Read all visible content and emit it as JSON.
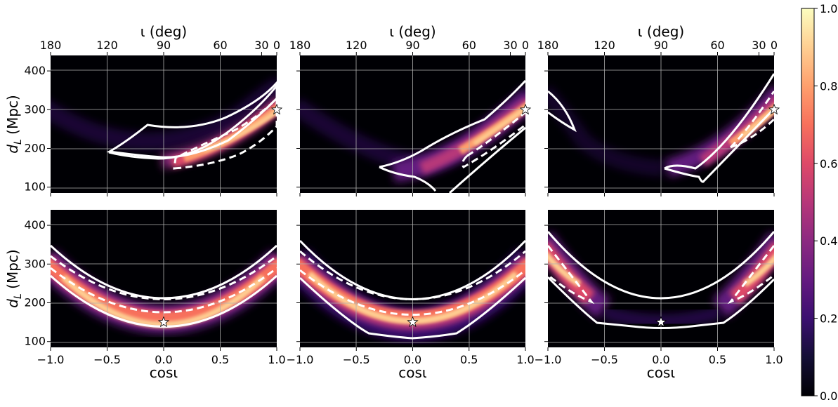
{
  "chart_data": {
    "type": "heatmap",
    "colormap": "magma",
    "panel_layout": "2 rows x 3 columns, shared axes",
    "x_axis": {
      "label": "cosι",
      "range": [
        -1.0,
        1.0
      ],
      "ticks": [
        -1.0,
        -0.5,
        0.0,
        0.5,
        1.0
      ],
      "tick_labels": [
        "−1.0",
        "−0.5",
        "0.0",
        "0.5",
        "1.0"
      ]
    },
    "top_axis": {
      "label": "ι (deg)",
      "ticks_deg": [
        180,
        120,
        90,
        60,
        30,
        0
      ],
      "tick_labels": [
        "180",
        "120",
        "90",
        "60",
        "30",
        "0"
      ]
    },
    "y_axis": {
      "label_main": "d",
      "label_sub": "L",
      "label_rest": " (Mpc)",
      "range": [
        85,
        440
      ],
      "ticks": [
        100,
        200,
        300,
        400
      ],
      "tick_labels": [
        "100",
        "200",
        "300",
        "400"
      ]
    },
    "colorbar": {
      "range": [
        0.0,
        1.0
      ],
      "ticks": [
        0.0,
        0.2,
        0.4,
        0.6,
        0.8,
        1.0
      ],
      "tick_labels": [
        "0.0",
        "0.2",
        "0.4",
        "0.6",
        "0.8",
        "1.0"
      ]
    },
    "contours": [
      {
        "style": "solid",
        "color": "#ffffff"
      },
      {
        "style": "dashed",
        "color": "#ffffff"
      }
    ],
    "panels": [
      {
        "row": 0,
        "col": 0,
        "true_value": {
          "cos_iota": 1.0,
          "d_L": 300
        },
        "band_center": [
          [
            -0.5,
            195
          ],
          [
            0.0,
            150
          ],
          [
            0.5,
            205
          ],
          [
            1.0,
            300
          ]
        ]
      },
      {
        "row": 0,
        "col": 1,
        "true_value": {
          "cos_iota": 1.0,
          "d_L": 300
        },
        "band_center": [
          [
            -0.3,
            160
          ],
          [
            0.0,
            140
          ],
          [
            0.5,
            205
          ],
          [
            1.0,
            300
          ]
        ]
      },
      {
        "row": 0,
        "col": 2,
        "true_value": {
          "cos_iota": 1.0,
          "d_L": 300
        },
        "band_center": [
          [
            -1.0,
            340
          ],
          [
            -0.75,
            250
          ],
          [
            0.0,
            145
          ],
          [
            0.5,
            200
          ],
          [
            1.0,
            300
          ]
        ]
      },
      {
        "row": 1,
        "col": 0,
        "true_value": {
          "cos_iota": 0.0,
          "d_L": 150
        },
        "band_center": [
          [
            -1.0,
            300
          ],
          [
            -0.5,
            195
          ],
          [
            0.0,
            155
          ],
          [
            0.5,
            195
          ],
          [
            1.0,
            300
          ]
        ]
      },
      {
        "row": 1,
        "col": 1,
        "true_value": {
          "cos_iota": 0.0,
          "d_L": 150
        },
        "band_center": [
          [
            -1.0,
            305
          ],
          [
            -0.5,
            185
          ],
          [
            0.0,
            145
          ],
          [
            0.5,
            185
          ],
          [
            1.0,
            305
          ]
        ]
      },
      {
        "row": 1,
        "col": 2,
        "true_value": {
          "cos_iota": 0.0,
          "d_L": 150
        },
        "band_center": [
          [
            -1.0,
            320
          ],
          [
            -0.6,
            200
          ],
          [
            0.0,
            150
          ],
          [
            0.6,
            200
          ],
          [
            1.0,
            320
          ]
        ]
      }
    ]
  }
}
